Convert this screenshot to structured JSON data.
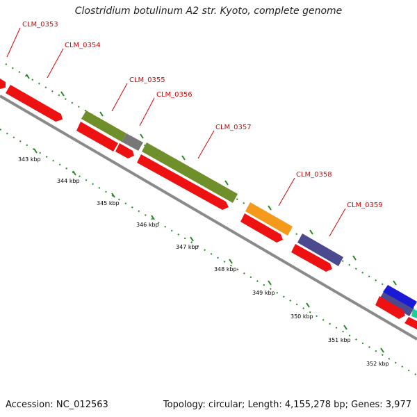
{
  "title": "Clostridium botulinum A2 str. Kyoto, complete genome",
  "footer": {
    "accession_label": "Accession:",
    "accession": "NC_012563",
    "topology": "Topology: circular; Length: 4,155,278 bp; Genes: 3,977"
  },
  "colors": {
    "cds": "#ee1111",
    "backbone": "#888888",
    "tick": "#228822",
    "label": "#dd0000",
    "features": {
      "olive": "#6f8f2a",
      "gray": "#777777",
      "orange": "#f39a1c",
      "slate": "#4b4a8f",
      "blue": "#1a1ad6",
      "teal": "#22cc99"
    }
  },
  "gene_labels": [
    "CLM_0353",
    "CLM_0354",
    "CLM_0355",
    "CLM_0356",
    "CLM_0357",
    "CLM_0358",
    "CLM_0359"
  ],
  "kbp_labels": [
    "343 kbp",
    "344 kbp",
    "345 kbp",
    "346 kbp",
    "347 kbp",
    "348 kbp",
    "349 kbp",
    "350 kbp",
    "351 kbp",
    "352 kbp"
  ]
}
